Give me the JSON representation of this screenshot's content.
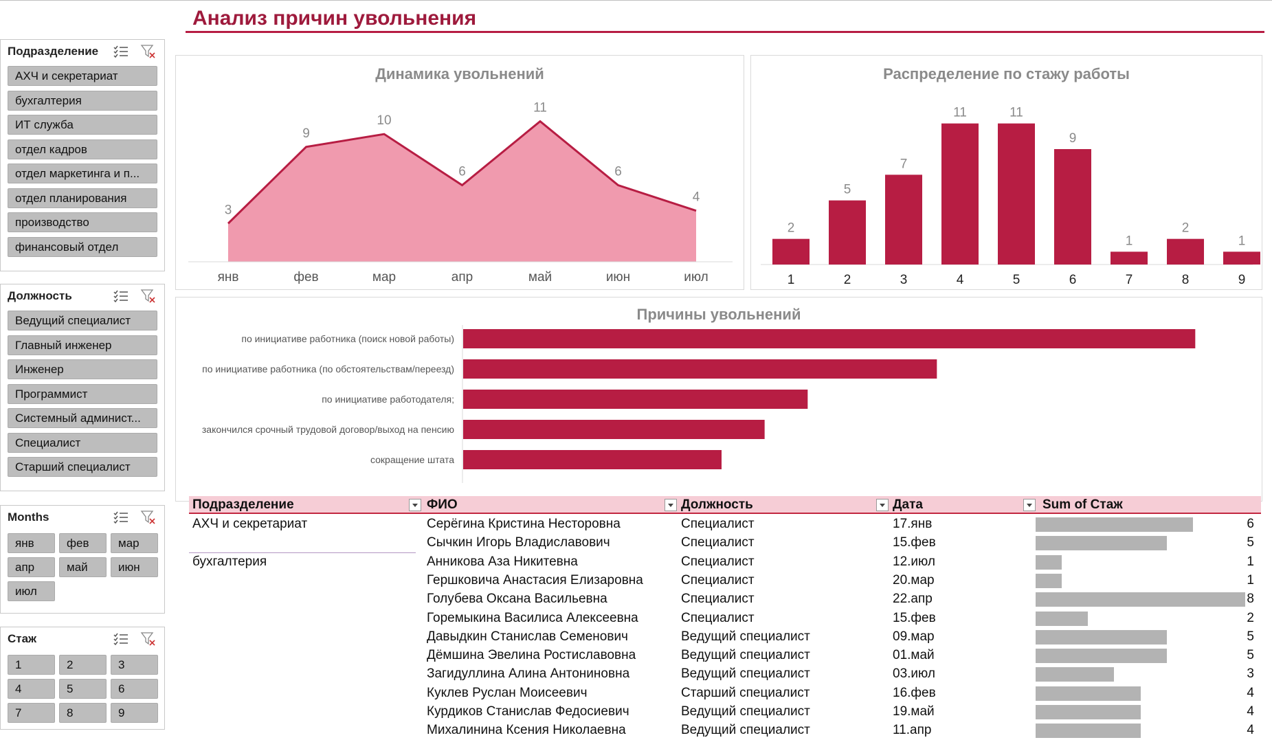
{
  "title": "Анализ причин увольнения",
  "colors": {
    "accent": "#b71d43",
    "area_fill": "#f09aae",
    "bar": "#b71d43",
    "slicer_item": "#bdbdbd",
    "table_header": "#f6cdd6",
    "data_bar": "#b3b3b3"
  },
  "slicers": {
    "dept": {
      "title": "Подразделение",
      "items": [
        "АХЧ и секретариат",
        "бухгалтерия",
        "ИТ служба",
        "отдел кадров",
        "отдел маркетинга и п...",
        "отдел планирования",
        "производство",
        "финансовый отдел"
      ]
    },
    "position": {
      "title": "Должность",
      "items": [
        "Ведущий специалист",
        "Главный инженер",
        "Инженер",
        "Программист",
        "Системный админист...",
        "Специалист",
        "Старший специалист"
      ]
    },
    "months": {
      "title": "Months",
      "items": [
        "янв",
        "фев",
        "мар",
        "апр",
        "май",
        "июн",
        "июл"
      ]
    },
    "tenure": {
      "title": "Стаж",
      "items": [
        "1",
        "2",
        "3",
        "4",
        "5",
        "6",
        "7",
        "8",
        "9"
      ]
    },
    "icons": {
      "multi": "multi-select-icon",
      "clear": "clear-filter-icon"
    }
  },
  "chart_data": [
    {
      "type": "area",
      "title": "Динамика увольнений",
      "categories": [
        "янв",
        "фев",
        "мар",
        "апр",
        "май",
        "июн",
        "июл"
      ],
      "values": [
        3,
        9,
        10,
        6,
        11,
        6,
        4
      ],
      "ylim": [
        0,
        12
      ],
      "grid": false
    },
    {
      "type": "bar",
      "title": "Распределение по стажу работы",
      "categories": [
        "1",
        "2",
        "3",
        "4",
        "5",
        "6",
        "7",
        "8",
        "9"
      ],
      "values": [
        2,
        5,
        7,
        11,
        11,
        9,
        1,
        2,
        1
      ],
      "ylim": [
        0,
        12
      ],
      "grid": false
    },
    {
      "type": "bar",
      "orientation": "horizontal",
      "title": "Причины увольнений",
      "categories": [
        "по инициативе работника (поиск новой работы)",
        "по инициативе работника (по обстоятельствам/переезд)",
        "по инициативе работодателя;",
        "закончился срочный трудовой договор/выход на пенсию",
        "сокращение штата"
      ],
      "values": [
        17,
        11,
        8,
        7,
        6
      ],
      "xlim": [
        0,
        18
      ],
      "grid": false
    }
  ],
  "table": {
    "headers": [
      "Подразделение",
      "ФИО",
      "Должность",
      "Дата",
      "Sum of Стаж"
    ],
    "max_value": 8,
    "rows": [
      {
        "dept": "АХЧ и секретариат",
        "name": "Серёгина Кристина Несторовна",
        "position": "Специалист",
        "date": "17.янв",
        "value": 6
      },
      {
        "dept": "",
        "name": "Сычкин Игорь Владиславович",
        "position": "Специалист",
        "date": "15.фев",
        "value": 5
      },
      {
        "dept": "бухгалтерия",
        "name": "Анникова Аза Никитевна",
        "position": "Специалист",
        "date": "12.июл",
        "value": 1
      },
      {
        "dept": "",
        "name": "Гершковича Анастасия Елизаровна",
        "position": "Специалист",
        "date": "20.мар",
        "value": 1
      },
      {
        "dept": "",
        "name": "Голубева Оксана Васильевна",
        "position": "Специалист",
        "date": "22.апр",
        "value": 8
      },
      {
        "dept": "",
        "name": "Горемыкина Василиса Алексеевна",
        "position": "Специалист",
        "date": "15.фев",
        "value": 2
      },
      {
        "dept": "",
        "name": "Давыдкин Станислав Семенович",
        "position": "Ведущий специалист",
        "date": "09.мар",
        "value": 5
      },
      {
        "dept": "",
        "name": "Дёмшина Эвелина Ростиславовна",
        "position": "Ведущий специалист",
        "date": "01.май",
        "value": 5
      },
      {
        "dept": "",
        "name": "Загидуллина Алина Антониновна",
        "position": "Ведущий специалист",
        "date": "03.июл",
        "value": 3
      },
      {
        "dept": "",
        "name": "Куклев Руслан Моисеевич",
        "position": "Старший специалист",
        "date": "16.фев",
        "value": 4
      },
      {
        "dept": "",
        "name": "Курдиков Станислав Федосиевич",
        "position": "Ведущий специалист",
        "date": "19.май",
        "value": 4
      },
      {
        "dept": "",
        "name": "Михалинина Ксения Николаевна",
        "position": "Ведущий специалист",
        "date": "11.апр",
        "value": 4
      }
    ]
  }
}
